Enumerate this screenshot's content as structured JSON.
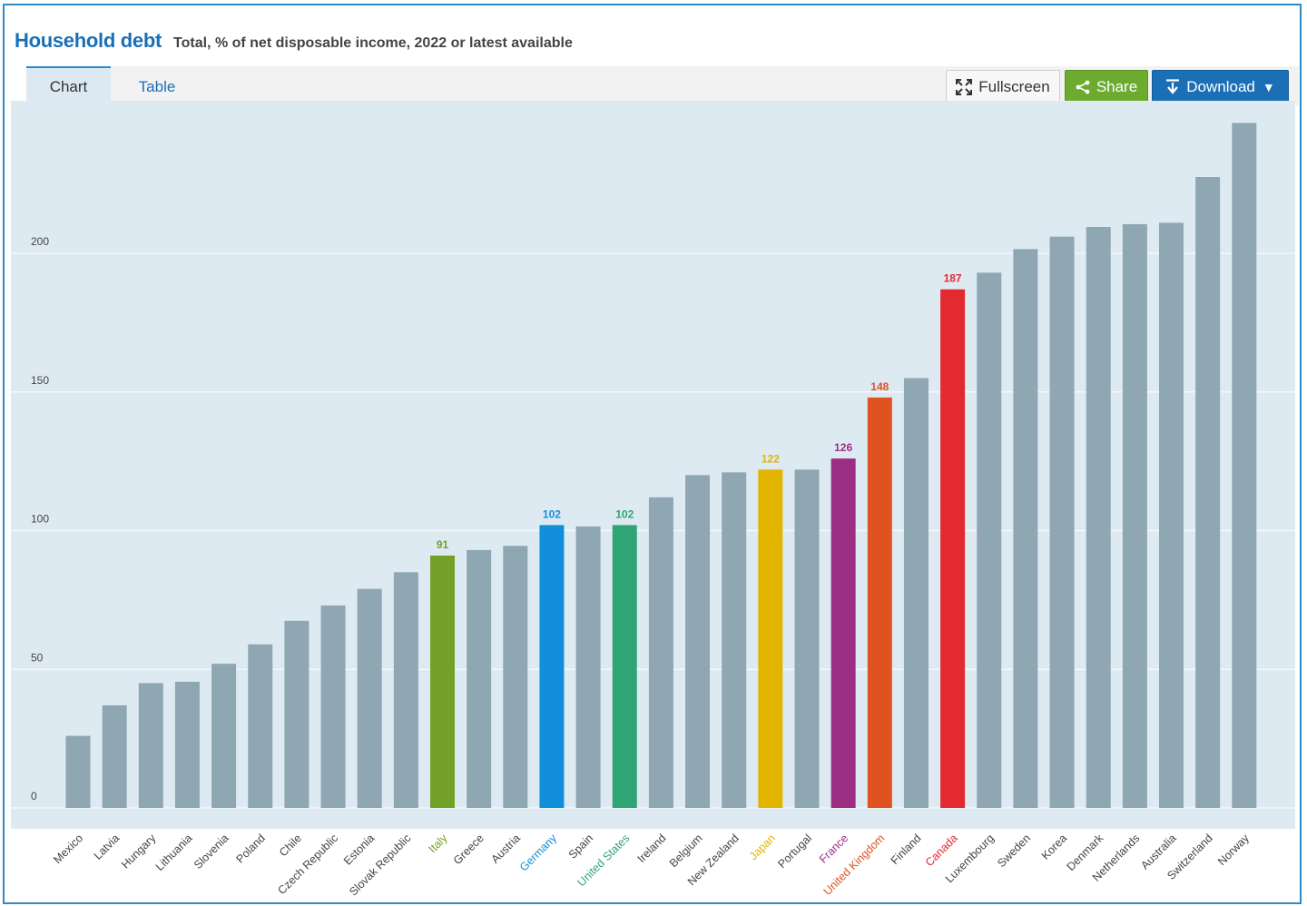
{
  "header": {
    "title": "Household debt",
    "subtitle": "Total, % of net disposable income, 2022 or latest available"
  },
  "tabs": [
    {
      "label": "Chart"
    },
    {
      "label": "Table"
    }
  ],
  "toolbar": {
    "fullscreen_label": "Fullscreen",
    "share_label": "Share",
    "download_label": "Download",
    "fullscreen_icon": "expand-icon",
    "share_icon": "share-icon",
    "download_icon": "download-icon",
    "dropdown_icon": "caret-down-icon"
  },
  "colors": {
    "default_bar": "#8fa6b3",
    "plot_background": "#deeaf2",
    "accent": "#1a6fb7"
  },
  "chart_data": {
    "type": "bar",
    "title": "Household debt",
    "subtitle": "Total, % of net disposable income, 2022 or latest available",
    "xlabel": "",
    "ylabel": "",
    "ylim": [
      0,
      250
    ],
    "yticks": [
      0,
      50,
      100,
      150,
      200
    ],
    "grid": true,
    "categories": [
      "Mexico",
      "Latvia",
      "Hungary",
      "Lithuania",
      "Slovenia",
      "Poland",
      "Chile",
      "Czech Republic",
      "Estonia",
      "Slovak Republic",
      "Italy",
      "Greece",
      "Austria",
      "Germany",
      "Spain",
      "United States",
      "Ireland",
      "Belgium",
      "New Zealand",
      "Japan",
      "Portugal",
      "France",
      "United Kingdom",
      "Finland",
      "Canada",
      "Luxembourg",
      "Sweden",
      "Korea",
      "Denmark",
      "Netherlands",
      "Australia",
      "Switzerland",
      "Norway"
    ],
    "values": [
      26,
      37,
      45,
      45.5,
      52,
      59,
      67.5,
      73,
      79,
      85,
      91,
      93,
      94.5,
      102,
      101.5,
      102,
      112,
      120,
      121,
      122,
      122,
      126,
      148,
      155,
      187,
      193,
      201.5,
      206,
      209.5,
      210.5,
      211,
      227.5,
      247
    ],
    "highlights": [
      {
        "category": "Italy",
        "color": "#73a128",
        "label": "91"
      },
      {
        "category": "Germany",
        "color": "#128fdb",
        "label": "102"
      },
      {
        "category": "United States",
        "color": "#2fa474",
        "label": "102"
      },
      {
        "category": "Japan",
        "color": "#e1b400",
        "label": "122"
      },
      {
        "category": "France",
        "color": "#9c2f84",
        "label": "126"
      },
      {
        "category": "United Kingdom",
        "color": "#e05320",
        "label": "148"
      },
      {
        "category": "Canada",
        "color": "#e42a31",
        "label": "187"
      }
    ]
  }
}
